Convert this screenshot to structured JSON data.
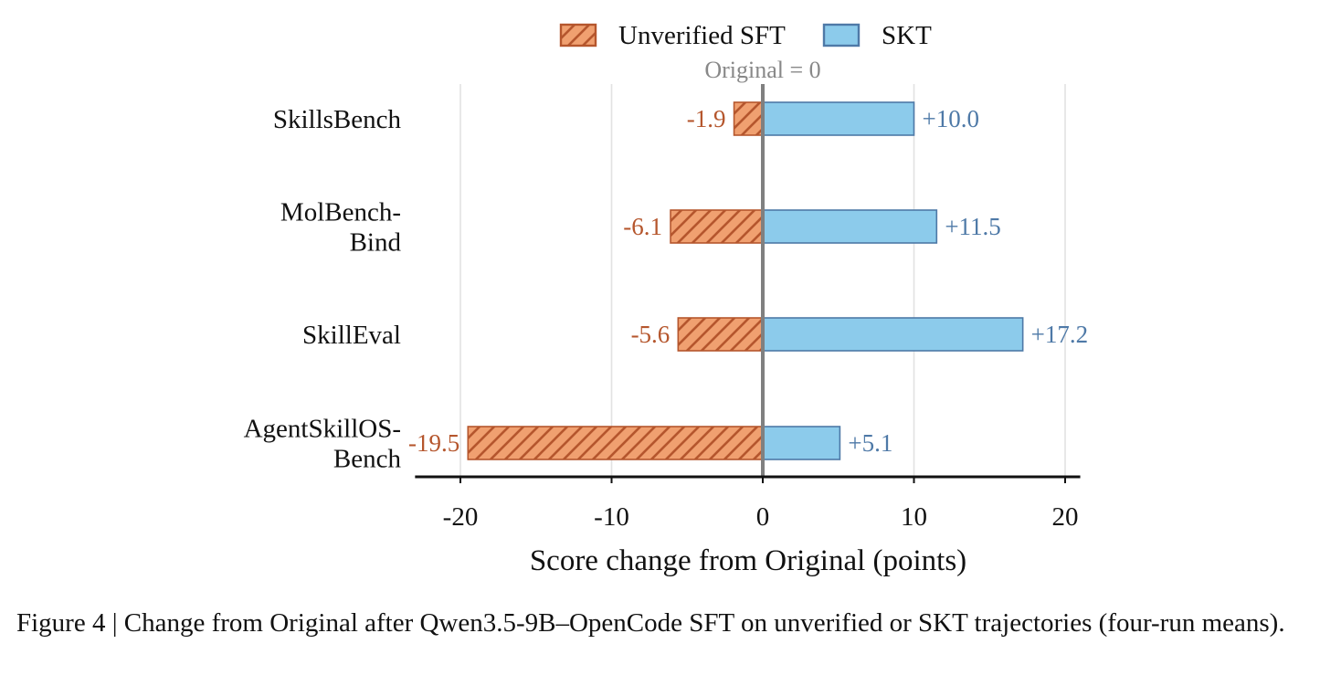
{
  "chart_data": {
    "type": "bar",
    "orientation": "horizontal",
    "categories": [
      [
        "SkillsBench"
      ],
      [
        "MolBench-",
        "Bind"
      ],
      [
        "SkillEval"
      ],
      [
        "AgentSkillOS-",
        "Bench"
      ]
    ],
    "series": [
      {
        "name": "Unverified SFT",
        "values": [
          -1.9,
          -6.1,
          -5.6,
          -19.5
        ],
        "labels": [
          "-1.9",
          "-6.1",
          "-5.6",
          "-19.5"
        ],
        "fill": "#f0a070",
        "stroke": "#b5562d",
        "hatch": "diagonal",
        "label_color": "#b5562d"
      },
      {
        "name": "SKT",
        "values": [
          10.0,
          11.5,
          17.2,
          5.1
        ],
        "labels": [
          "+10.0",
          "+11.5",
          "+17.2",
          "+5.1"
        ],
        "fill": "#8ccbeb",
        "stroke": "#4e79a7",
        "hatch": "none",
        "label_color": "#4e79a7"
      }
    ],
    "xlabel": "Score change from Original (points)",
    "xlim": [
      -23,
      21
    ],
    "xticks": [
      -20,
      -10,
      0,
      10,
      20
    ],
    "zero_line_label": "Original = 0",
    "grid": "vertical",
    "legend": "top-center"
  },
  "caption": "Figure 4 | Change from Original after Qwen3.5-9B–OpenCode SFT on unverified or SKT trajectories (four-run means)."
}
